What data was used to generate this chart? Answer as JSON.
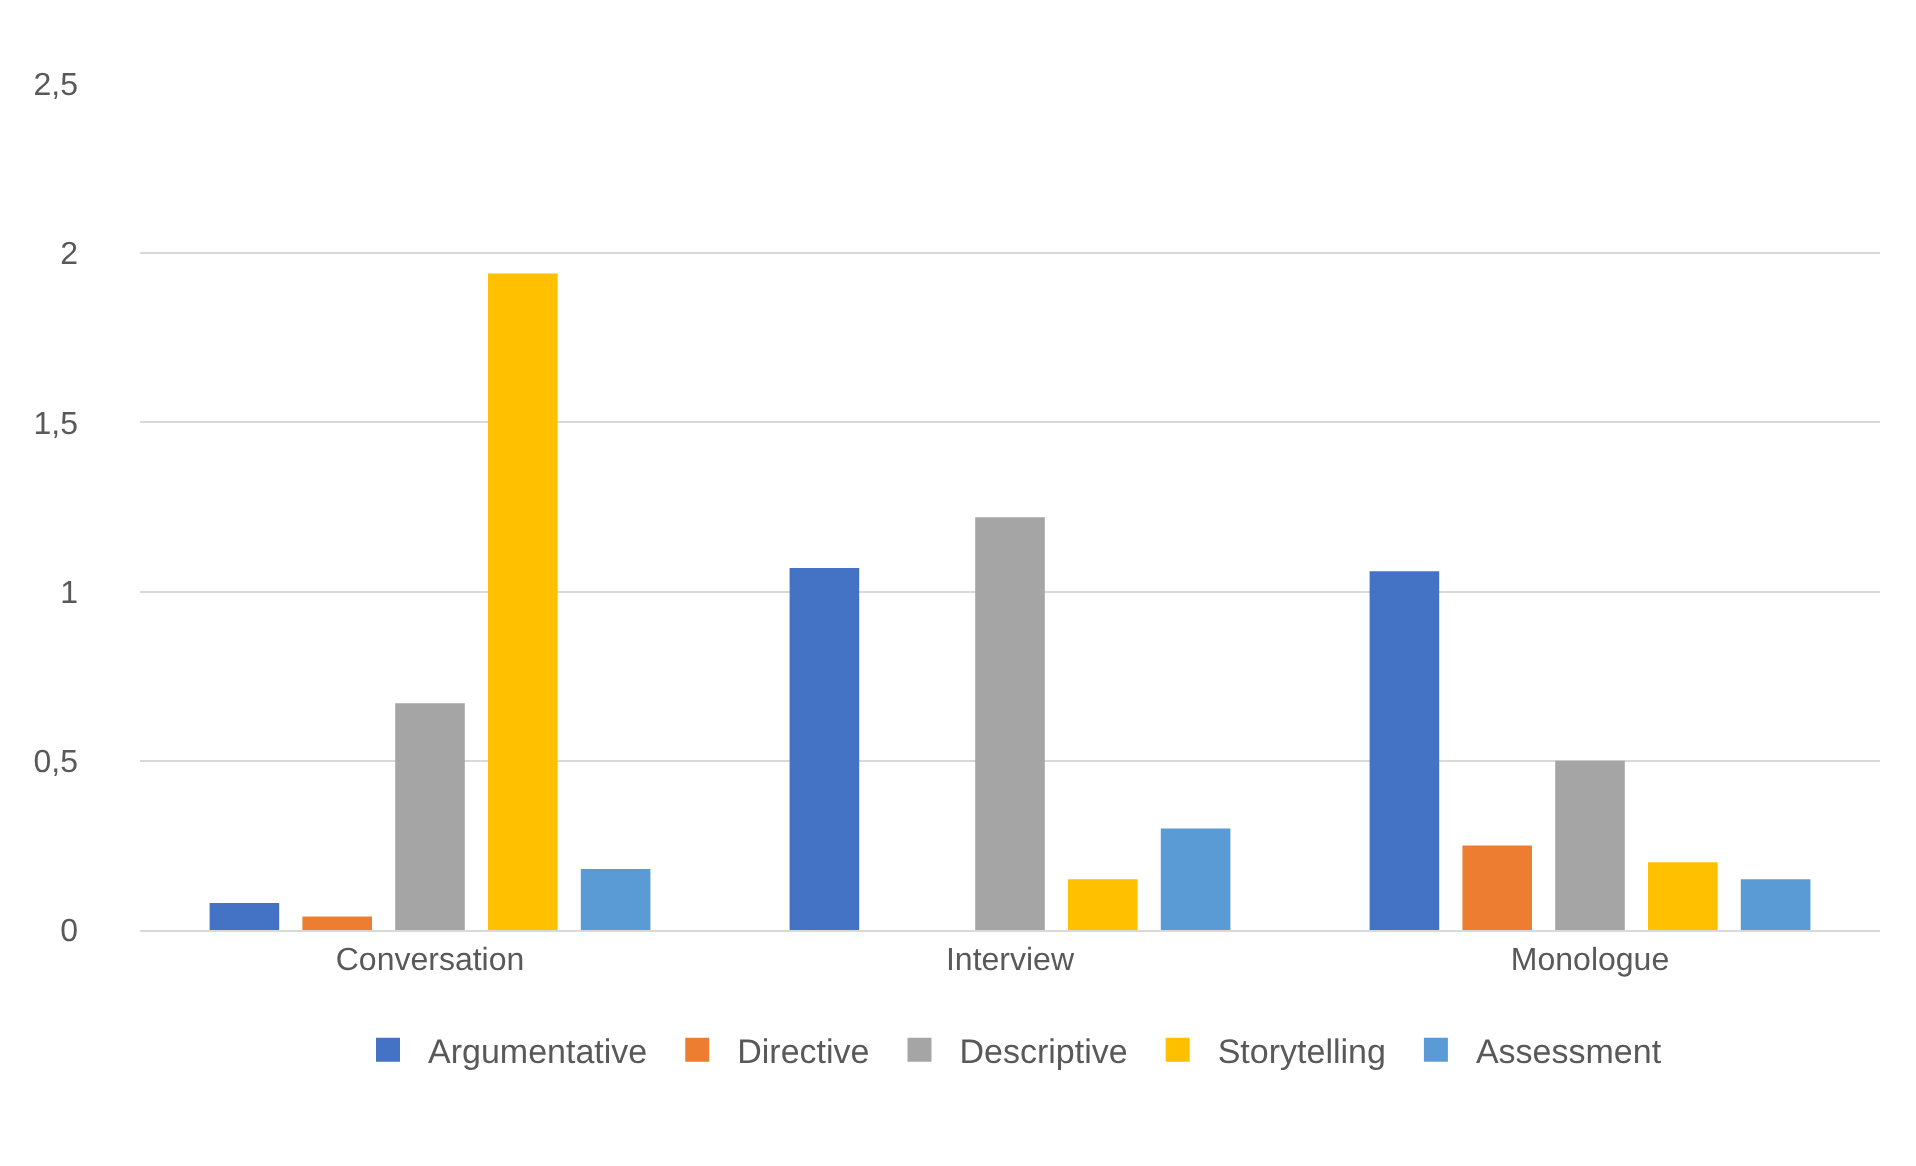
{
  "chart_data": {
    "type": "bar",
    "categories": [
      "Conversation",
      "Interview",
      "Monologue"
    ],
    "series": [
      {
        "name": "Argumentative",
        "color": "#4472c4",
        "values": [
          0.08,
          1.07,
          1.06
        ]
      },
      {
        "name": "Directive",
        "color": "#ed7d31",
        "values": [
          0.04,
          0,
          0.25
        ]
      },
      {
        "name": "Descriptive",
        "color": "#a5a5a5",
        "values": [
          0.67,
          1.22,
          0.5
        ]
      },
      {
        "name": "Storytelling",
        "color": "#ffc000",
        "values": [
          1.94,
          0.15,
          0.2
        ]
      },
      {
        "name": "Assessment",
        "color": "#5b9bd5",
        "values": [
          0.18,
          0.3,
          0.15
        ]
      }
    ],
    "ylim": [
      0,
      2.5
    ],
    "yticks": [
      0,
      {
        "value": 0.5,
        "label": "0,5"
      },
      1,
      {
        "value": 1.5,
        "label": "1,5"
      },
      2,
      {
        "value": 2.5,
        "label": "2,5"
      }
    ],
    "grid": "y",
    "legend": "bottom"
  }
}
